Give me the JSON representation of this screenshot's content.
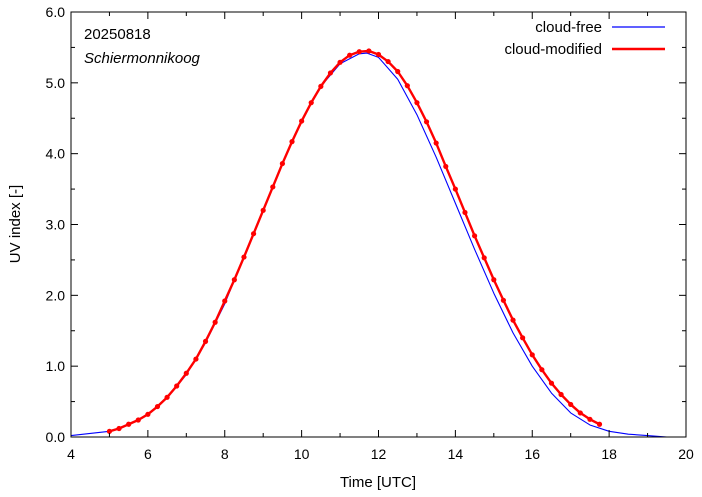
{
  "chart_data": {
    "type": "line",
    "title": "",
    "xlabel": "Time  [UTC]",
    "ylabel": "UV index  [-]",
    "xlim": [
      4,
      20
    ],
    "ylim": [
      0,
      6
    ],
    "xticks": [
      4,
      6,
      8,
      10,
      12,
      14,
      16,
      18,
      20
    ],
    "yticks": [
      0,
      1,
      2,
      3,
      4,
      5,
      6
    ],
    "xtick_labels": [
      "4",
      "6",
      "8",
      "10",
      "12",
      "14",
      "16",
      "18",
      "20"
    ],
    "ytick_labels": [
      "0.0",
      "1.0",
      "2.0",
      "3.0",
      "4.0",
      "5.0",
      "6.0"
    ],
    "grid": false,
    "legend_position": "top-right",
    "annotations": [
      "20250818",
      "Schiermonnikoog"
    ],
    "series": [
      {
        "name": "cloud-free",
        "color": "#0000ff",
        "marker": "none",
        "x": [
          4.0,
          4.5,
          5.0,
          5.5,
          6.0,
          6.5,
          7.0,
          7.5,
          8.0,
          8.5,
          9.0,
          9.5,
          10.0,
          10.5,
          11.0,
          11.5,
          11.7,
          12.0,
          12.5,
          13.0,
          13.5,
          14.0,
          14.5,
          15.0,
          15.5,
          16.0,
          16.5,
          17.0,
          17.5,
          18.0,
          18.5,
          19.0,
          19.5
        ],
        "y": [
          0.02,
          0.05,
          0.08,
          0.18,
          0.32,
          0.55,
          0.88,
          1.33,
          1.88,
          2.55,
          3.2,
          3.86,
          4.46,
          4.95,
          5.27,
          5.41,
          5.42,
          5.36,
          5.05,
          4.55,
          3.95,
          3.3,
          2.65,
          2.03,
          1.47,
          1.0,
          0.62,
          0.34,
          0.17,
          0.08,
          0.04,
          0.02,
          0.0
        ]
      },
      {
        "name": "cloud-modified",
        "color": "#ff0000",
        "marker": "circle",
        "x": [
          5.0,
          5.25,
          5.5,
          5.75,
          6.0,
          6.25,
          6.5,
          6.75,
          7.0,
          7.25,
          7.5,
          7.75,
          8.0,
          8.25,
          8.5,
          8.75,
          9.0,
          9.25,
          9.5,
          9.75,
          10.0,
          10.25,
          10.5,
          10.75,
          11.0,
          11.25,
          11.5,
          11.75,
          12.0,
          12.25,
          12.5,
          12.75,
          13.0,
          13.25,
          13.5,
          13.75,
          14.0,
          14.25,
          14.5,
          14.75,
          15.0,
          15.25,
          15.5,
          15.75,
          16.0,
          16.25,
          16.5,
          16.75,
          17.0,
          17.25,
          17.5,
          17.75
        ],
        "y": [
          0.08,
          0.12,
          0.18,
          0.24,
          0.32,
          0.43,
          0.56,
          0.72,
          0.9,
          1.1,
          1.35,
          1.62,
          1.92,
          2.22,
          2.54,
          2.87,
          3.2,
          3.53,
          3.86,
          4.17,
          4.46,
          4.72,
          4.95,
          5.14,
          5.29,
          5.39,
          5.44,
          5.45,
          5.4,
          5.3,
          5.16,
          4.96,
          4.72,
          4.45,
          4.15,
          3.82,
          3.5,
          3.17,
          2.84,
          2.53,
          2.22,
          1.93,
          1.65,
          1.4,
          1.16,
          0.95,
          0.76,
          0.6,
          0.46,
          0.34,
          0.25,
          0.18
        ]
      }
    ]
  }
}
